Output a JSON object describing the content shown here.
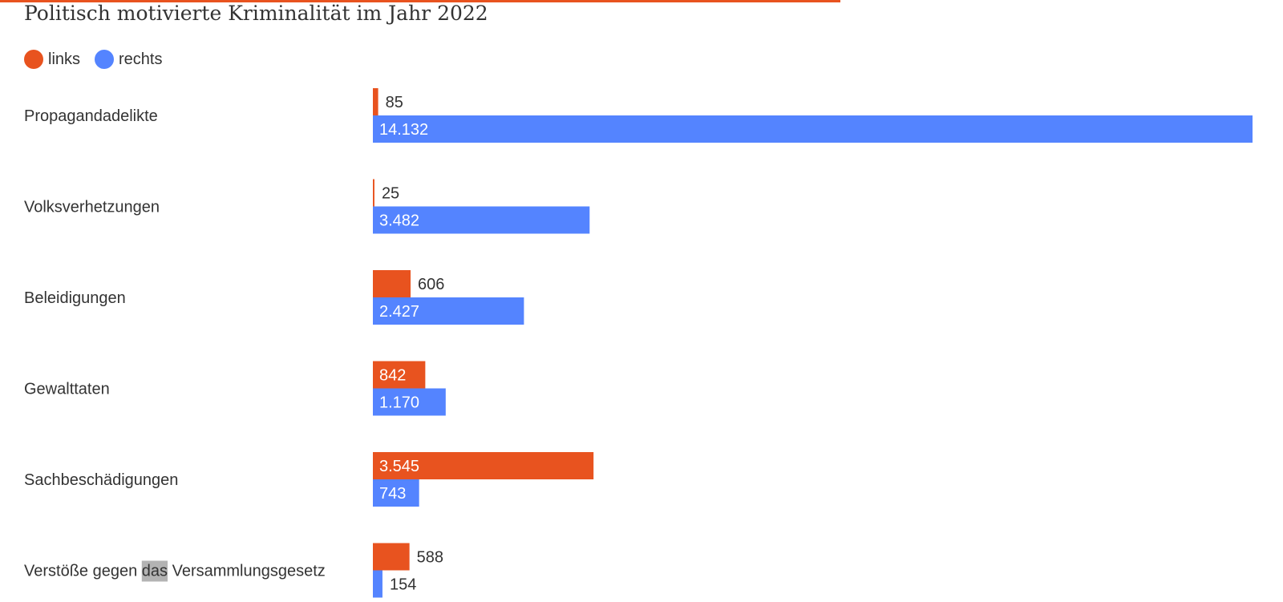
{
  "title": "Politisch motivierte Kriminalität im Jahr 2022",
  "colors": {
    "links": "#e8531f",
    "rechts": "#5484ff",
    "text": "#333333",
    "label_inside": "#ffffff"
  },
  "legend": [
    {
      "name": "links",
      "color": "#e8531f"
    },
    {
      "name": "rechts",
      "color": "#5484ff"
    }
  ],
  "chart_data": {
    "type": "bar",
    "orientation": "horizontal",
    "title": "Politisch motivierte Kriminalität im Jahr 2022",
    "xlabel": "",
    "ylabel": "",
    "xlim": [
      0,
      14132
    ],
    "grid": false,
    "legend_position": "top-left",
    "categories": [
      "Propagandadelikte",
      "Volksverhetzungen",
      "Beleidigungen",
      "Gewalttaten",
      "Sachbeschädigungen",
      "Verstöße gegen das Versammlungsgesetz"
    ],
    "series": [
      {
        "name": "links",
        "values": [
          85,
          25,
          606,
          842,
          3545,
          588
        ],
        "value_labels": [
          "85",
          "25",
          "606",
          "842",
          "3.545",
          "588"
        ]
      },
      {
        "name": "rechts",
        "values": [
          14132,
          3482,
          2427,
          1170,
          743,
          154
        ],
        "value_labels": [
          "14.132",
          "3.482",
          "2.427",
          "1.170",
          "743",
          "154"
        ]
      }
    ],
    "annotations": [
      {
        "category_index": 5,
        "highlighted_word": "das"
      }
    ]
  }
}
